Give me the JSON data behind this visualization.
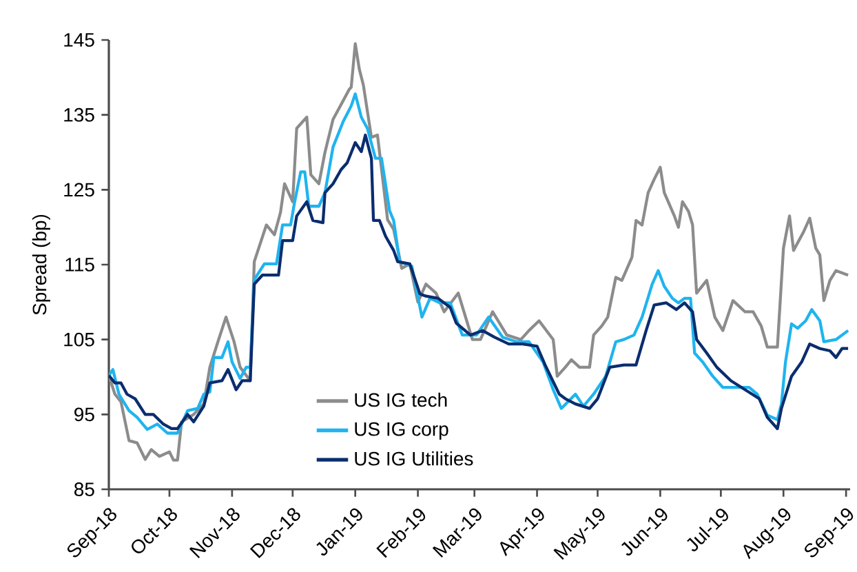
{
  "chart_data": {
    "type": "line",
    "ylabel": "Spread (bp)",
    "xlim": [
      "2018-09-01",
      "2019-09-03"
    ],
    "xticks": [
      {
        "value": "2018-09-01",
        "label": "Sep-18"
      },
      {
        "value": "2018-10-01",
        "label": "Oct-18"
      },
      {
        "value": "2018-11-01",
        "label": "Nov-18"
      },
      {
        "value": "2018-12-01",
        "label": "Dec-18"
      },
      {
        "value": "2019-01-01",
        "label": "Jan-19"
      },
      {
        "value": "2019-02-01",
        "label": "Feb-19"
      },
      {
        "value": "2019-03-01",
        "label": "Mar-19"
      },
      {
        "value": "2019-04-01",
        "label": "Apr-19"
      },
      {
        "value": "2019-05-01",
        "label": "May-19"
      },
      {
        "value": "2019-06-01",
        "label": "Jun-19"
      },
      {
        "value": "2019-07-01",
        "label": "Jul-19"
      },
      {
        "value": "2019-08-01",
        "label": "Aug-19"
      },
      {
        "value": "2019-09-01",
        "label": "Sep-19"
      }
    ],
    "ylim": [
      85,
      145
    ],
    "yticks": [
      85,
      95,
      105,
      115,
      125,
      135,
      145
    ],
    "grid": false,
    "legend": "bottom left",
    "marker": "none",
    "line_style": "solid",
    "series": [
      {
        "name": "US IG tech",
        "color": "#8c8c8c",
        "x": [
          "2018-09-01",
          "2018-09-04",
          "2018-09-07",
          "2018-09-11",
          "2018-09-15",
          "2018-09-19",
          "2018-09-22",
          "2018-09-26",
          "2018-10-01",
          "2018-10-03",
          "2018-10-05",
          "2018-10-07",
          "2018-10-13",
          "2018-10-18",
          "2018-10-21",
          "2018-10-25",
          "2018-10-29",
          "2018-11-02",
          "2018-11-05",
          "2018-11-10",
          "2018-11-12",
          "2018-11-18",
          "2018-11-22",
          "2018-11-25",
          "2018-11-27",
          "2018-12-01",
          "2018-12-03",
          "2018-12-08",
          "2018-12-10",
          "2018-12-14",
          "2018-12-17",
          "2018-12-21",
          "2018-12-24",
          "2018-12-29",
          "2018-12-30",
          "2019-01-01",
          "2019-01-03",
          "2019-01-05",
          "2019-01-09",
          "2019-01-12",
          "2019-01-17",
          "2019-01-20",
          "2019-01-24",
          "2019-01-28",
          "2019-02-01",
          "2019-02-05",
          "2019-02-10",
          "2019-02-14",
          "2019-02-21",
          "2019-02-28",
          "2019-03-04",
          "2019-03-10",
          "2019-03-17",
          "2019-03-24",
          "2019-03-28",
          "2019-04-02",
          "2019-04-09",
          "2019-04-11",
          "2019-04-15",
          "2019-04-18",
          "2019-04-22",
          "2019-04-27",
          "2019-04-29",
          "2019-05-03",
          "2019-05-06",
          "2019-05-10",
          "2019-05-13",
          "2019-05-18",
          "2019-05-20",
          "2019-05-23",
          "2019-05-26",
          "2019-05-29",
          "2019-06-01",
          "2019-06-03",
          "2019-06-08",
          "2019-06-10",
          "2019-06-12",
          "2019-06-15",
          "2019-06-17",
          "2019-06-19",
          "2019-06-24",
          "2019-06-28",
          "2019-07-02",
          "2019-07-07",
          "2019-07-13",
          "2019-07-17",
          "2019-07-21",
          "2019-07-24",
          "2019-07-29",
          "2019-08-01",
          "2019-08-04",
          "2019-08-06",
          "2019-08-11",
          "2019-08-14",
          "2019-08-17",
          "2019-08-19",
          "2019-08-21",
          "2019-08-24",
          "2019-08-27",
          "2019-09-02"
        ],
        "values": [
          100.2,
          97.7,
          96.7,
          91.5,
          91.2,
          89,
          90.3,
          89.4,
          90,
          88.9,
          88.9,
          94,
          95,
          96.4,
          101.3,
          104.7,
          108,
          104.7,
          101.3,
          99.5,
          115.4,
          120.3,
          119,
          122,
          125.8,
          123.4,
          133.2,
          134.7,
          127,
          125.8,
          130,
          134.4,
          135.9,
          138.4,
          138.7,
          144.5,
          141.1,
          139,
          132,
          132.3,
          121,
          119.7,
          114.5,
          115.1,
          110,
          112.4,
          111.2,
          108.7,
          111.2,
          105,
          105,
          108.7,
          105.6,
          105,
          106.2,
          107.5,
          105,
          100.1,
          101.3,
          102.3,
          101.3,
          101.3,
          105.6,
          106.8,
          108,
          113.3,
          112.9,
          116,
          120.9,
          120.3,
          124.6,
          126.4,
          128,
          124.6,
          121.5,
          120,
          123.4,
          122.1,
          120.3,
          111.2,
          112.9,
          108,
          106.2,
          110.2,
          108.7,
          108.7,
          106.8,
          104,
          104,
          117.2,
          121.5,
          116.9,
          119.4,
          121.2,
          117.2,
          116.3,
          110.2,
          112.9,
          114.2,
          113.6
        ]
      },
      {
        "name": "US IG corp",
        "color": "#1fb4ef",
        "x": [
          "2018-09-01",
          "2018-09-03",
          "2018-09-06",
          "2018-09-11",
          "2018-09-15",
          "2018-09-20",
          "2018-09-25",
          "2018-09-30",
          "2018-10-05",
          "2018-10-10",
          "2018-10-15",
          "2018-10-18",
          "2018-10-21",
          "2018-10-23",
          "2018-10-27",
          "2018-10-30",
          "2018-11-01",
          "2018-11-05",
          "2018-11-08",
          "2018-11-10",
          "2018-11-12",
          "2018-11-17",
          "2018-11-23",
          "2018-11-26",
          "2018-11-30",
          "2018-12-02",
          "2018-12-05",
          "2018-12-07",
          "2018-12-09",
          "2018-12-14",
          "2018-12-17",
          "2018-12-21",
          "2018-12-26",
          "2018-12-30",
          "2019-01-01",
          "2019-01-04",
          "2019-01-07",
          "2019-01-11",
          "2019-01-14",
          "2019-01-18",
          "2019-01-20",
          "2019-01-23",
          "2019-01-29",
          "2019-02-03",
          "2019-02-07",
          "2019-02-12",
          "2019-02-17",
          "2019-02-23",
          "2019-03-02",
          "2019-03-08",
          "2019-03-15",
          "2019-03-22",
          "2019-03-28",
          "2019-04-04",
          "2019-04-09",
          "2019-04-13",
          "2019-04-20",
          "2019-04-24",
          "2019-04-29",
          "2019-05-05",
          "2019-05-10",
          "2019-05-14",
          "2019-05-19",
          "2019-05-23",
          "2019-05-28",
          "2019-05-31",
          "2019-06-03",
          "2019-06-07",
          "2019-06-10",
          "2019-06-13",
          "2019-06-16",
          "2019-06-18",
          "2019-06-22",
          "2019-06-27",
          "2019-07-02",
          "2019-07-08",
          "2019-07-15",
          "2019-07-19",
          "2019-07-24",
          "2019-07-29",
          "2019-07-31",
          "2019-08-02",
          "2019-08-05",
          "2019-08-08",
          "2019-08-12",
          "2019-08-15",
          "2019-08-19",
          "2019-08-21",
          "2019-08-27",
          "2019-09-02"
        ],
        "values": [
          100.2,
          101,
          97.7,
          95.5,
          94.6,
          93,
          93.7,
          92.5,
          92.5,
          95.5,
          95.8,
          97.7,
          98,
          102.6,
          102.6,
          104.7,
          102,
          99.8,
          101.3,
          101.3,
          113,
          115.1,
          115.1,
          120.3,
          120.3,
          123.4,
          127.4,
          127.4,
          122.8,
          122.8,
          124.6,
          130.7,
          134.1,
          136.2,
          137.8,
          134.7,
          133.2,
          129.2,
          129.2,
          122.2,
          120.9,
          115.4,
          114.8,
          108,
          110.5,
          109.9,
          109.9,
          105.6,
          105.6,
          108,
          105.3,
          104.7,
          104.7,
          102,
          98.3,
          95.8,
          97.7,
          96.1,
          97.7,
          100.1,
          104.7,
          105,
          105.6,
          108,
          112.4,
          114.2,
          112.1,
          110.5,
          109.9,
          110.5,
          110.5,
          103.2,
          102,
          100.1,
          98.6,
          98.6,
          98.6,
          97.7,
          94.9,
          94.3,
          96.4,
          102,
          107.1,
          106.5,
          107.5,
          109,
          107.5,
          104.7,
          105,
          106.2
        ]
      },
      {
        "name": "US IG Utilities",
        "color": "#0a2d6e",
        "x": [
          "2018-09-01",
          "2018-09-04",
          "2018-09-07",
          "2018-09-10",
          "2018-09-14",
          "2018-09-19",
          "2018-09-23",
          "2018-09-28",
          "2018-10-02",
          "2018-10-05",
          "2018-10-10",
          "2018-10-13",
          "2018-10-18",
          "2018-10-21",
          "2018-10-27",
          "2018-10-30",
          "2018-11-03",
          "2018-11-06",
          "2018-11-10",
          "2018-11-12",
          "2018-11-16",
          "2018-11-24",
          "2018-11-26",
          "2018-12-01",
          "2018-12-03",
          "2018-12-08",
          "2018-12-11",
          "2018-12-16",
          "2018-12-17",
          "2018-12-21",
          "2018-12-25",
          "2018-12-28",
          "2019-01-01",
          "2019-01-04",
          "2019-01-06",
          "2019-01-09",
          "2019-01-10",
          "2019-01-13",
          "2019-01-16",
          "2019-01-20",
          "2019-01-22",
          "2019-01-28",
          "2019-02-02",
          "2019-02-05",
          "2019-02-11",
          "2019-02-17",
          "2019-02-20",
          "2019-02-27",
          "2019-03-05",
          "2019-03-11",
          "2019-03-18",
          "2019-03-25",
          "2019-04-01",
          "2019-04-05",
          "2019-04-12",
          "2019-04-15",
          "2019-04-20",
          "2019-04-27",
          "2019-05-01",
          "2019-05-07",
          "2019-05-14",
          "2019-05-20",
          "2019-05-25",
          "2019-05-29",
          "2019-06-04",
          "2019-06-09",
          "2019-06-13",
          "2019-06-17",
          "2019-06-19",
          "2019-06-24",
          "2019-06-29",
          "2019-07-06",
          "2019-07-13",
          "2019-07-20",
          "2019-07-24",
          "2019-07-29",
          "2019-07-31",
          "2019-08-05",
          "2019-08-10",
          "2019-08-14",
          "2019-08-19",
          "2019-08-24",
          "2019-08-27",
          "2019-08-30",
          "2019-09-02"
        ],
        "values": [
          100.2,
          99.2,
          99.2,
          97.7,
          97.1,
          95,
          95,
          93.7,
          93.1,
          93.1,
          95,
          94,
          96.1,
          99.2,
          99.5,
          101,
          98.3,
          99.5,
          99.5,
          112.4,
          113.6,
          113.6,
          118.2,
          118.2,
          121.5,
          123.4,
          120.9,
          120.6,
          124.6,
          125.8,
          127.7,
          128.6,
          131.3,
          130.1,
          132.3,
          129.2,
          120.9,
          120.9,
          118.8,
          116.9,
          115.4,
          115.1,
          111.1,
          110.8,
          110.5,
          109.3,
          107.2,
          105.6,
          106.2,
          105.3,
          104.4,
          104.4,
          104.1,
          101.6,
          97.7,
          97.1,
          96.4,
          95.8,
          97.1,
          101.3,
          101.6,
          101.6,
          106.2,
          109.6,
          109.9,
          109,
          109.9,
          108.7,
          105,
          103.2,
          101.3,
          99.5,
          98.3,
          97.1,
          94.6,
          93.1,
          95.8,
          100.1,
          102,
          104.4,
          103.8,
          103.5,
          102.6,
          103.8,
          103.8
        ]
      }
    ]
  }
}
